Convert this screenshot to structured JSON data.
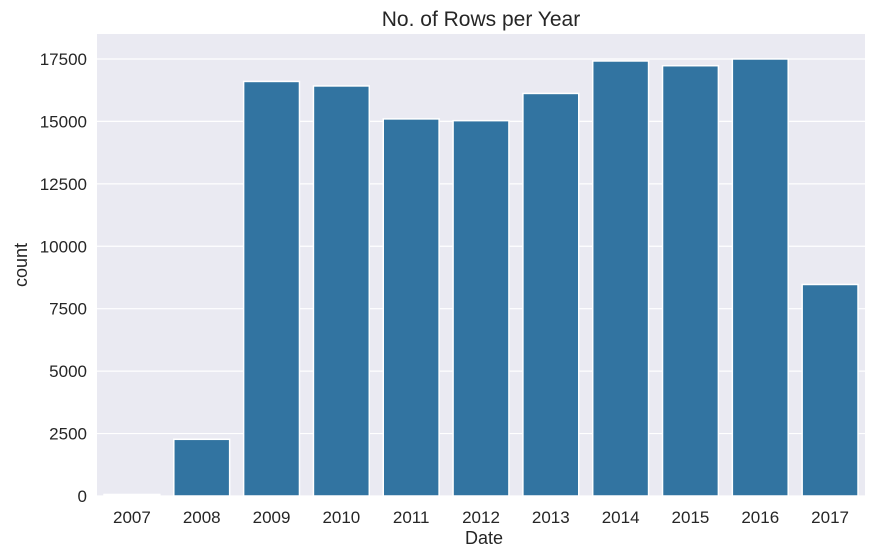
{
  "chart_data": {
    "type": "bar",
    "title": "No. of Rows per Year",
    "xlabel": "Date",
    "ylabel": "count",
    "categories": [
      "2007",
      "2008",
      "2009",
      "2010",
      "2011",
      "2012",
      "2013",
      "2014",
      "2015",
      "2016",
      "2017"
    ],
    "values": [
      60,
      2270,
      16600,
      16420,
      15100,
      15030,
      16120,
      17420,
      17230,
      17500,
      8470
    ],
    "ylim": [
      0,
      18500
    ],
    "yticks": [
      0,
      2500,
      5000,
      7500,
      10000,
      12500,
      15000,
      17500
    ],
    "yticklabels": [
      "0",
      "2500",
      "5000",
      "7500",
      "10000",
      "12500",
      "15000",
      "17500"
    ],
    "grid": true,
    "colors": {
      "bar": "#3274a1",
      "plot_background": "#eaeaf2",
      "grid": "#ffffff",
      "text": "#262626"
    }
  }
}
